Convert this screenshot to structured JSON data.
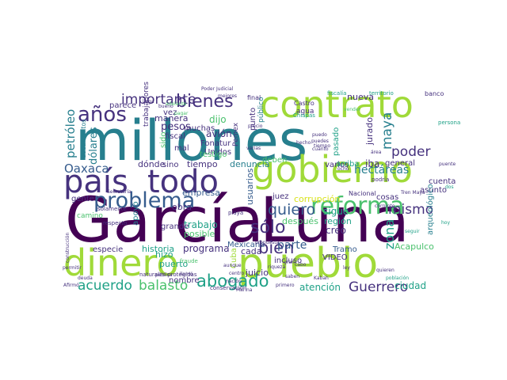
{
  "palette": {
    "deep_purple": "#440154",
    "indigo": "#46327e",
    "blue": "#365c8d",
    "teal": "#277f8e",
    "green_teal": "#1fa187",
    "green": "#4ac16d",
    "lime": "#a0da39",
    "yellow": "#d8e219",
    "background": "#ffffff"
  },
  "words": [
    {
      "text": "millones",
      "color": "teal"
    },
    {
      "text": "García",
      "color": "deep_purple"
    },
    {
      "text": "Luna",
      "color": "deep_purple"
    },
    {
      "text": "pueblo",
      "color": "lime"
    },
    {
      "text": "dinero",
      "color": "lime"
    },
    {
      "text": "gobierno",
      "color": "lime"
    },
    {
      "text": "contrato",
      "color": "lime"
    },
    {
      "text": "país",
      "color": "indigo"
    },
    {
      "text": "todo",
      "color": "indigo"
    },
    {
      "text": "reforma",
      "color": "green"
    },
    {
      "text": "problema",
      "color": "blue"
    },
    {
      "text": "bienes",
      "color": "indigo"
    },
    {
      "text": "años",
      "color": "indigo"
    },
    {
      "text": "abogado",
      "color": "green_teal"
    },
    {
      "text": "bien",
      "color": "indigo"
    },
    {
      "text": "sólo",
      "color": "indigo"
    },
    {
      "text": "quiero",
      "color": "blue"
    },
    {
      "text": "importante",
      "color": "indigo"
    },
    {
      "text": "acuerdo",
      "color": "green_teal"
    },
    {
      "text": "balasto",
      "color": "green"
    },
    {
      "text": "Guerrero",
      "color": "indigo"
    },
    {
      "text": "poder",
      "color": "indigo"
    },
    {
      "text": "mismo",
      "color": "indigo"
    },
    {
      "text": "maya",
      "color": "teal"
    },
    {
      "text": "parte",
      "color": "blue"
    },
    {
      "text": "zona",
      "color": "green_teal"
    },
    {
      "text": "petróleo",
      "color": "teal"
    },
    {
      "text": "hectáreas",
      "color": "teal"
    },
    {
      "text": "Oaxaca",
      "color": "blue"
    },
    {
      "text": "ciudad",
      "color": "green_teal"
    },
    {
      "text": "pesos",
      "color": "indigo"
    },
    {
      "text": "dijo",
      "color": "green"
    },
    {
      "text": "corrupción",
      "color": "yellow"
    },
    {
      "text": "después",
      "color": "green"
    },
    {
      "text": "Acapulco",
      "color": "green"
    },
    {
      "text": "denuncia",
      "color": "teal"
    },
    {
      "text": "trabajo",
      "color": "green_teal"
    },
    {
      "text": "posible",
      "color": "green"
    },
    {
      "text": "historia",
      "color": "green_teal"
    },
    {
      "text": "programa",
      "color": "indigo"
    },
    {
      "text": "atención",
      "color": "green_teal"
    },
    {
      "text": "dónde",
      "color": "indigo"
    },
    {
      "text": "tiempo",
      "color": "indigo"
    },
    {
      "text": "empresa",
      "color": "blue"
    },
    {
      "text": "obra",
      "color": "indigo"
    },
    {
      "text": "creo",
      "color": "indigo"
    },
    {
      "text": "sigue",
      "color": "green_teal"
    },
    {
      "text": "Tramo",
      "color": "blue"
    },
    {
      "text": "VIDEO",
      "color": "indigo"
    },
    {
      "text": "jurado",
      "color": "indigo"
    },
    {
      "text": "nueva",
      "color": "indigo"
    },
    {
      "text": "pasado",
      "color": "green_teal"
    },
    {
      "text": "región",
      "color": "green_teal"
    },
    {
      "text": "cada",
      "color": "indigo"
    },
    {
      "text": "juicio",
      "color": "indigo"
    },
    {
      "text": "incluso",
      "color": "indigo"
    },
    {
      "text": "grande",
      "color": "indigo"
    },
    {
      "text": "hizo",
      "color": "green_teal"
    },
    {
      "text": "puerto",
      "color": "green_teal"
    },
    {
      "text": "nombre",
      "color": "indigo"
    },
    {
      "text": "manera",
      "color": "indigo"
    },
    {
      "text": "muchas",
      "color": "indigo"
    },
    {
      "text": "avión",
      "color": "indigo"
    },
    {
      "text": "Fonatur",
      "color": "indigo"
    },
    {
      "text": "Unidos",
      "color": "indigo"
    },
    {
      "text": "vez",
      "color": "indigo"
    },
    {
      "text": "testigo",
      "color": "green"
    },
    {
      "text": "fiscal",
      "color": "indigo"
    },
    {
      "text": "mal",
      "color": "indigo"
    },
    {
      "text": "sino",
      "color": "indigo"
    },
    {
      "text": "varios",
      "color": "indigo"
    },
    {
      "text": "iba",
      "color": "indigo"
    },
    {
      "text": "general",
      "color": "indigo"
    },
    {
      "text": "cosas",
      "color": "indigo"
    },
    {
      "text": "juez",
      "color": "indigo"
    },
    {
      "text": "usuarios",
      "color": "blue"
    },
    {
      "text": "gente",
      "color": "indigo"
    },
    {
      "text": "dólares",
      "color": "teal"
    },
    {
      "text": "cuenta",
      "color": "indigo"
    },
    {
      "text": "asunto",
      "color": "indigo"
    },
    {
      "text": "arqueológico",
      "color": "teal"
    },
    {
      "text": "Mexicana",
      "color": "blue"
    },
    {
      "text": "Cuba",
      "color": "lime"
    },
    {
      "text": "apoyo",
      "color": "teal"
    },
    {
      "text": "especie",
      "color": "indigo"
    },
    {
      "text": "parece",
      "color": "indigo"
    },
    {
      "text": "trabajadores",
      "color": "indigo"
    },
    {
      "text": "punto",
      "color": "indigo"
    },
    {
      "text": "público",
      "color": "teal"
    },
    {
      "text": "Pemex",
      "color": "indigo"
    },
    {
      "text": "deben",
      "color": "green"
    },
    {
      "text": "arriba",
      "color": "green_teal"
    },
    {
      "text": "sido",
      "color": "green"
    },
    {
      "text": "agua",
      "color": "indigo"
    },
    {
      "text": "Castro",
      "color": "indigo"
    },
    {
      "text": "documentos",
      "color": "teal"
    },
    {
      "text": "camino",
      "color": "green"
    },
    {
      "text": "Nacional",
      "color": "indigo"
    },
    {
      "text": "Poder Judicial",
      "color": "indigo"
    },
    {
      "text": "final",
      "color": "indigo"
    },
    {
      "text": "fiscalía",
      "color": "green_teal"
    },
    {
      "text": "territorio",
      "color": "green_teal"
    },
    {
      "text": "banco",
      "color": "indigo"
    },
    {
      "text": "persona",
      "color": "green_teal"
    },
    {
      "text": "Secretaría",
      "color": "indigo"
    },
    {
      "text": "solamente",
      "color": "indigo"
    },
    {
      "text": "respecto",
      "color": "indigo"
    },
    {
      "text": "naturales protegidas",
      "color": "indigo"
    },
    {
      "text": "conservación",
      "color": "indigo"
    },
    {
      "text": "Tren Maya",
      "color": "indigo"
    },
    {
      "text": "propuesta",
      "color": "indigo"
    },
    {
      "text": "centro",
      "color": "indigo"
    },
    {
      "text": "nación",
      "color": "indigo"
    },
    {
      "text": "playa",
      "color": "indigo"
    },
    {
      "text": "gran",
      "color": "indigo"
    },
    {
      "text": "llamó",
      "color": "indigo"
    },
    {
      "text": "Kabah",
      "color": "indigo"
    },
    {
      "text": "fraude",
      "color": "green"
    },
    {
      "text": "pública",
      "color": "indigo"
    },
    {
      "text": "Afirmó",
      "color": "indigo"
    },
    {
      "text": "podría",
      "color": "indigo"
    },
    {
      "text": "ocho",
      "color": "indigo"
    },
    {
      "text": "hecho",
      "color": "indigo"
    },
    {
      "text": "varias",
      "color": "indigo"
    },
    {
      "text": "precio",
      "color": "indigo"
    },
    {
      "text": "Chiapas",
      "color": "green_teal"
    },
    {
      "text": "puedo",
      "color": "indigo"
    },
    {
      "text": "quieren",
      "color": "indigo"
    },
    {
      "text": "población",
      "color": "green_teal"
    },
    {
      "text": "permitir",
      "color": "indigo"
    },
    {
      "text": "construcción",
      "color": "indigo"
    },
    {
      "text": "deuda",
      "color": "indigo"
    },
    {
      "text": "adelante",
      "color": "green"
    },
    {
      "text": "llega",
      "color": "indigo"
    },
    {
      "text": "pagar",
      "color": "green"
    },
    {
      "text": "bueno",
      "color": "indigo"
    },
    {
      "text": "primero",
      "color": "indigo"
    },
    {
      "text": "ley",
      "color": "indigo"
    },
    {
      "text": "corrupto",
      "color": "indigo"
    },
    {
      "text": "seguir",
      "color": "green_teal"
    },
    {
      "text": "hoy",
      "color": "green_teal"
    },
    {
      "text": "dos",
      "color": "green_teal"
    },
    {
      "text": "área",
      "color": "indigo"
    },
    {
      "text": "puedes",
      "color": "indigo"
    },
    {
      "text": "cuánto",
      "color": "indigo"
    },
    {
      "text": "riqueza",
      "color": "indigo"
    },
    {
      "text": "saben",
      "color": "indigo"
    },
    {
      "text": "aunque",
      "color": "indigo"
    },
    {
      "text": "Marina",
      "color": "indigo"
    },
    {
      "text": "mejores",
      "color": "indigo"
    },
    {
      "text": "vender",
      "color": "green"
    },
    {
      "text": "tiempo",
      "color": "indigo"
    },
    {
      "text": "cabo",
      "color": "indigo"
    },
    {
      "text": "puente",
      "color": "indigo"
    }
  ]
}
